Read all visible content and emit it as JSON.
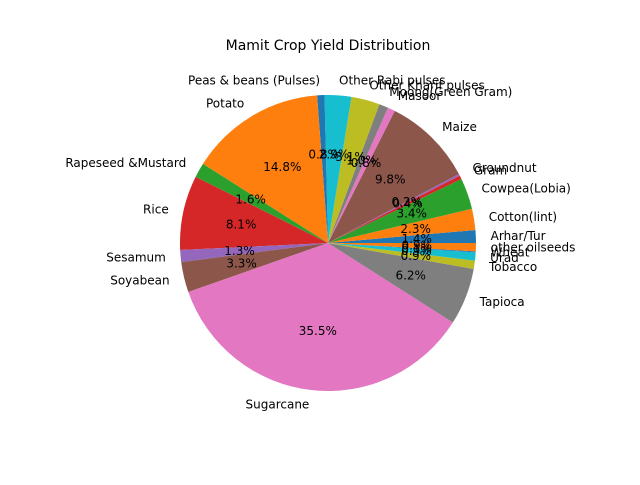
{
  "chart_data": {
    "type": "pie",
    "title": "Mamit Crop Yield Distribution",
    "start_angle_deg": 0,
    "direction": "counterclockwise",
    "slices": [
      {
        "label": "Arhar/Tur",
        "value": 1.4,
        "pct_label": "1.4%",
        "color": "#1f77b4"
      },
      {
        "label": "Cotton(lint)",
        "value": 2.3,
        "pct_label": "2.3%",
        "color": "#ff7f0e"
      },
      {
        "label": "Cowpea(Lobia)",
        "value": 3.4,
        "pct_label": "3.4%",
        "color": "#2ca02c"
      },
      {
        "label": "Gram",
        "value": 0.4,
        "pct_label": "0.4%",
        "color": "#d62728"
      },
      {
        "label": "Groundnut",
        "value": 0.2,
        "pct_label": "0.2%",
        "color": "#9467bd"
      },
      {
        "label": "Maize",
        "value": 9.8,
        "pct_label": "9.8%",
        "color": "#8c564b"
      },
      {
        "label": "Masoor",
        "value": 0.8,
        "pct_label": "0.8%",
        "color": "#e377c2"
      },
      {
        "label": "Moong(Green Gram)",
        "value": 1.0,
        "pct_label": "1.0%",
        "color": "#7f7f7f"
      },
      {
        "label": "Other Kharif pulses",
        "value": 3.1,
        "pct_label": "3.1%",
        "color": "#bcbd22"
      },
      {
        "label": "Other Rabi pulses",
        "value": 2.9,
        "pct_label": "2.9%",
        "color": "#17becf"
      },
      {
        "label": "Peas & beans (Pulses)",
        "value": 0.8,
        "pct_label": "0.8%",
        "color": "#1f77b4"
      },
      {
        "label": "Potato",
        "value": 14.8,
        "pct_label": "14.8%",
        "color": "#ff7f0e"
      },
      {
        "label": "Rapeseed &Mustard",
        "value": 1.6,
        "pct_label": "1.6%",
        "color": "#2ca02c"
      },
      {
        "label": "Rice",
        "value": 8.1,
        "pct_label": "8.1%",
        "color": "#d62728"
      },
      {
        "label": "Sesamum",
        "value": 1.3,
        "pct_label": "1.3%",
        "color": "#9467bd"
      },
      {
        "label": "Soyabean",
        "value": 3.3,
        "pct_label": "3.3%",
        "color": "#8c564b"
      },
      {
        "label": "Sugarcane",
        "value": 35.5,
        "pct_label": "35.5%",
        "color": "#e377c2"
      },
      {
        "label": "Tapioca",
        "value": 6.2,
        "pct_label": "6.2%",
        "color": "#7f7f7f"
      },
      {
        "label": "Tobacco",
        "value": 0.9,
        "pct_label": "0.9%",
        "color": "#bcbd22"
      },
      {
        "label": "Urad",
        "value": 0.9,
        "pct_label": "0.9%",
        "color": "#17becf"
      },
      {
        "label": "Wheat",
        "value": 0.1,
        "pct_label": "0.1%",
        "color": "#1f77b4"
      },
      {
        "label": "other oilseeds",
        "value": 0.9,
        "pct_label": "0.9%",
        "color": "#ff7f0e"
      }
    ]
  }
}
